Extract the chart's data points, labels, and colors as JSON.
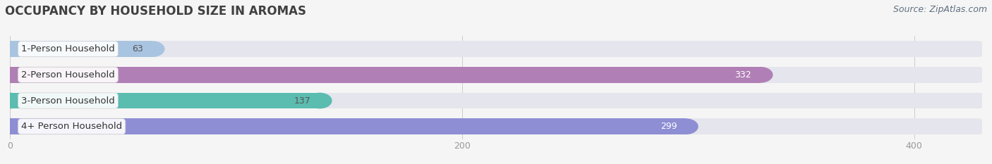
{
  "title": "OCCUPANCY BY HOUSEHOLD SIZE IN AROMAS",
  "source": "Source: ZipAtlas.com",
  "categories": [
    "1-Person Household",
    "2-Person Household",
    "3-Person Household",
    "4+ Person Household"
  ],
  "values": [
    63,
    332,
    137,
    299
  ],
  "bar_colors": [
    "#a8c4e0",
    "#b07fb5",
    "#5bbcb0",
    "#8e8ed4"
  ],
  "label_colors": [
    "#555555",
    "#ffffff",
    "#555555",
    "#ffffff"
  ],
  "xlim": [
    0,
    430
  ],
  "xticks": [
    0,
    200,
    400
  ],
  "bg_color": "#f5f5f5",
  "bar_bg_color": "#e5e5ed",
  "title_color": "#404040",
  "source_color": "#607080",
  "title_fontsize": 12,
  "label_fontsize": 9.5,
  "value_fontsize": 9,
  "source_fontsize": 9
}
